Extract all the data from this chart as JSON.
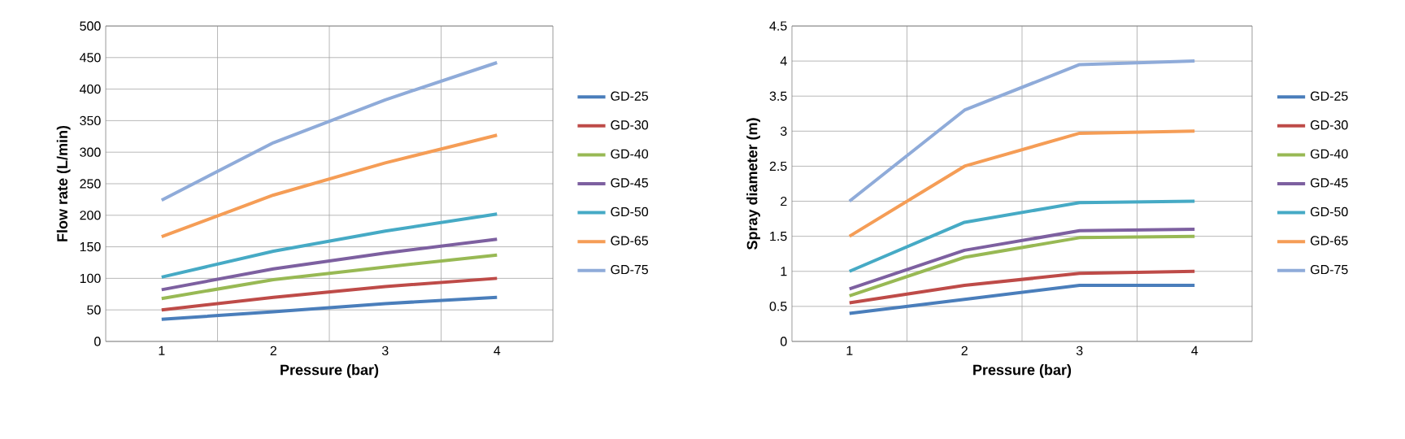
{
  "chart_data": [
    {
      "type": "line",
      "xlabel": "Pressure (bar)",
      "ylabel": "Flow rate (L/min)",
      "x": [
        1,
        2,
        3,
        4
      ],
      "xlim": [
        0.5,
        4.5
      ],
      "xticks": [
        1,
        2,
        3,
        4
      ],
      "ylim": [
        0,
        500
      ],
      "yticks": [
        0,
        50,
        100,
        150,
        200,
        250,
        300,
        350,
        400,
        450,
        500
      ],
      "grid": true,
      "legend": "right",
      "series": [
        {
          "name": "GD-25",
          "color": "#4a7ebb",
          "values": [
            35,
            47,
            60,
            70
          ]
        },
        {
          "name": "GD-30",
          "color": "#be4b48",
          "values": [
            50,
            70,
            87,
            100
          ]
        },
        {
          "name": "GD-40",
          "color": "#98b954",
          "values": [
            68,
            98,
            118,
            137
          ]
        },
        {
          "name": "GD-45",
          "color": "#7d60a0",
          "values": [
            82,
            115,
            140,
            162
          ]
        },
        {
          "name": "GD-50",
          "color": "#46aac5",
          "values": [
            102,
            143,
            175,
            202
          ]
        },
        {
          "name": "GD-65",
          "color": "#f59d56",
          "values": [
            166,
            232,
            283,
            327
          ]
        },
        {
          "name": "GD-75",
          "color": "#8fabd9",
          "values": [
            224,
            315,
            383,
            442
          ]
        }
      ]
    },
    {
      "type": "line",
      "xlabel": "Pressure (bar)",
      "ylabel": "Spray diameter (m)",
      "x": [
        1,
        2,
        3,
        4
      ],
      "xlim": [
        0.5,
        4.5
      ],
      "xticks": [
        1,
        2,
        3,
        4
      ],
      "ylim": [
        0,
        4.5
      ],
      "yticks": [
        0,
        0.5,
        1,
        1.5,
        2,
        2.5,
        3,
        3.5,
        4,
        4.5
      ],
      "grid": true,
      "legend": "right",
      "series": [
        {
          "name": "GD-25",
          "color": "#4a7ebb",
          "values": [
            0.4,
            0.6,
            0.8,
            0.8
          ]
        },
        {
          "name": "GD-30",
          "color": "#be4b48",
          "values": [
            0.55,
            0.8,
            0.97,
            1.0
          ]
        },
        {
          "name": "GD-40",
          "color": "#98b954",
          "values": [
            0.65,
            1.2,
            1.48,
            1.5
          ]
        },
        {
          "name": "GD-45",
          "color": "#7d60a0",
          "values": [
            0.75,
            1.3,
            1.58,
            1.6
          ]
        },
        {
          "name": "GD-50",
          "color": "#46aac5",
          "values": [
            1.0,
            1.7,
            1.98,
            2.0
          ]
        },
        {
          "name": "GD-65",
          "color": "#f59d56",
          "values": [
            1.5,
            2.5,
            2.97,
            3.0
          ]
        },
        {
          "name": "GD-75",
          "color": "#8fabd9",
          "values": [
            2.0,
            3.3,
            3.95,
            4.0
          ]
        }
      ]
    }
  ]
}
